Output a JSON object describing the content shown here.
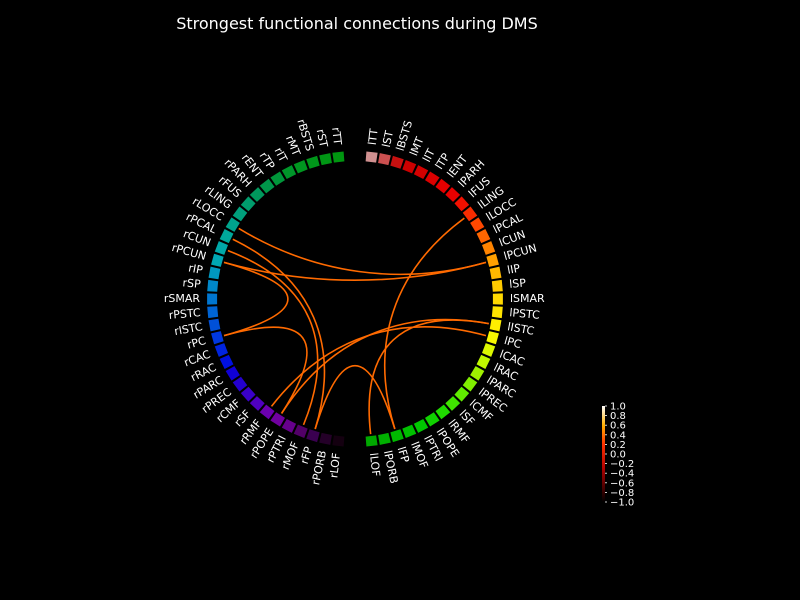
{
  "chart_data": {
    "type": "connectivity-circle",
    "title": "Strongest functional connections during DMS",
    "node_names": [
      "lTT",
      "lST",
      "lBSTS",
      "lMT",
      "lIT",
      "lTP",
      "lENT",
      "lPARH",
      "lFUS",
      "lLING",
      "lLOCC",
      "lPCAL",
      "lCUN",
      "lPCUN",
      "lIP",
      "lSP",
      "lSMAR",
      "lPSTC",
      "lISTC",
      "lPC",
      "lCAC",
      "lRAC",
      "lPARC",
      "lPREC",
      "lCMF",
      "lSF",
      "lRMF",
      "lPOPE",
      "lPTRI",
      "lMOF",
      "lFP",
      "lPORB",
      "lLOF",
      "rLOF",
      "rPORB",
      "rFP",
      "rMOF",
      "rPTRI",
      "rPOPE",
      "rRMF",
      "rSF",
      "rCMF",
      "rPREC",
      "rPARC",
      "rRAC",
      "rCAC",
      "rPC",
      "rISTC",
      "rPSTC",
      "rSMAR",
      "rSP",
      "rIP",
      "rPCUN",
      "rCUN",
      "rPCAL",
      "rLOCC",
      "rLING",
      "rFUS",
      "rPARH",
      "rENT",
      "rTP",
      "rIT",
      "rMT",
      "rBSTS",
      "rST",
      "rTT"
    ],
    "node_colors": [
      "#d09090",
      "#cc5050",
      "#c81010",
      "#cc0000",
      "#d40000",
      "#dc0000",
      "#e40000",
      "#ea0000",
      "#f21000",
      "#f82c00",
      "#ff4800",
      "#ff6600",
      "#ff8400",
      "#ffa000",
      "#ffb800",
      "#ffca00",
      "#ffd800",
      "#ffe400",
      "#ffef00",
      "#f6f800",
      "#dcf800",
      "#c0f800",
      "#a0f000",
      "#80ee00",
      "#60ec00",
      "#40e400",
      "#20dc00",
      "#10d200",
      "#00c800",
      "#00c000",
      "#00b800",
      "#00b000",
      "#00a800",
      "#140010",
      "#240028",
      "#3a0050",
      "#520068",
      "#66008c",
      "#7000a0",
      "#6c00b0",
      "#5000c0",
      "#3a00c8",
      "#2400d0",
      "#1000d8",
      "#0010e0",
      "#0024e0",
      "#0038e0",
      "#0050d8",
      "#0064d4",
      "#0076d0",
      "#0088ca",
      "#0098c0",
      "#00a8b4",
      "#00a8a8",
      "#00a89a",
      "#00a48c",
      "#00a07c",
      "#009c6c",
      "#00985c",
      "#00964a",
      "#00963a",
      "#00962a",
      "#009620",
      "#00961a",
      "#009614",
      "#009610"
    ],
    "connections": [
      {
        "a": "lPCUN",
        "b": "rPCUN",
        "strength": 0.9
      },
      {
        "a": "lPCUN",
        "b": "rLOCC",
        "strength": 0.9
      },
      {
        "a": "lLING",
        "b": "lIFP",
        "strength": 0.9
      },
      {
        "a": "lISTC",
        "b": "lLOF",
        "strength": 0.9
      },
      {
        "a": "lISTC",
        "b": "rPOPE",
        "strength": 0.9
      },
      {
        "a": "lPC",
        "b": "rRMF",
        "strength": 0.9
      },
      {
        "a": "rFP",
        "b": "lFP",
        "strength": 0.9
      },
      {
        "a": "rFP",
        "b": "rPCAL",
        "strength": 0.9
      },
      {
        "a": "rMOF",
        "b": "rCUN",
        "strength": 0.9
      },
      {
        "a": "rPC",
        "b": "rPOPE",
        "strength": 0.9
      },
      {
        "a": "rPC",
        "b": "rPCUN",
        "strength": 0.9
      }
    ],
    "connection_color": "#ff6a00",
    "colorbar": {
      "ticks": [
        "1.0",
        "0.8",
        "0.6",
        "0.4",
        "0.2",
        "0.0",
        "−0.2",
        "−0.4",
        "−0.6",
        "−0.8",
        "−1.0"
      ],
      "range": [
        -1.0,
        1.0
      ],
      "colormap": "hot"
    }
  }
}
